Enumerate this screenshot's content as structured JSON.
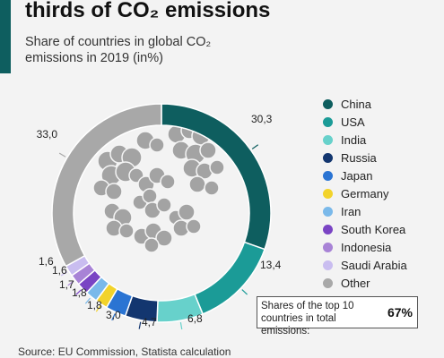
{
  "header": {
    "title": "thirds of CO₂ emissions",
    "subtitle": "Share of countries in global CO₂ emissions in 2019 (in%)"
  },
  "chart_data": {
    "type": "pie",
    "style": "donut",
    "title": "thirds of CO₂ emissions",
    "subtitle": "Share of countries in global CO₂ emissions in 2019 (in%)",
    "legend_position": "right",
    "unit": "%",
    "categories": [
      "China",
      "USA",
      "India",
      "Russia",
      "Japan",
      "Germany",
      "Iran",
      "South Korea",
      "Indonesia",
      "Saudi Arabia",
      "Other"
    ],
    "values": [
      30.3,
      13.4,
      6.8,
      4.7,
      3.0,
      1.8,
      1.8,
      1.7,
      1.6,
      1.6,
      33.0
    ],
    "labels": [
      "30,3",
      "13,4",
      "6,8",
      "4,7",
      "3,0",
      "1,8",
      "1,8",
      "1,7",
      "1,6",
      "1,6",
      "33,0"
    ],
    "colors": [
      "#0e5e5f",
      "#1b9b97",
      "#67d1cb",
      "#13366f",
      "#2a74d3",
      "#f2d32b",
      "#7ab9ea",
      "#7a44c4",
      "#a883d6",
      "#c9bdf0",
      "#a8a8a8"
    ]
  },
  "summary": {
    "text": "Shares of the top 10 countries in total emissions:",
    "value": "67%"
  },
  "source": "Source: EU Commission, Statista calculation",
  "decoration": {
    "center_image": "smoke-clouds-icon"
  }
}
